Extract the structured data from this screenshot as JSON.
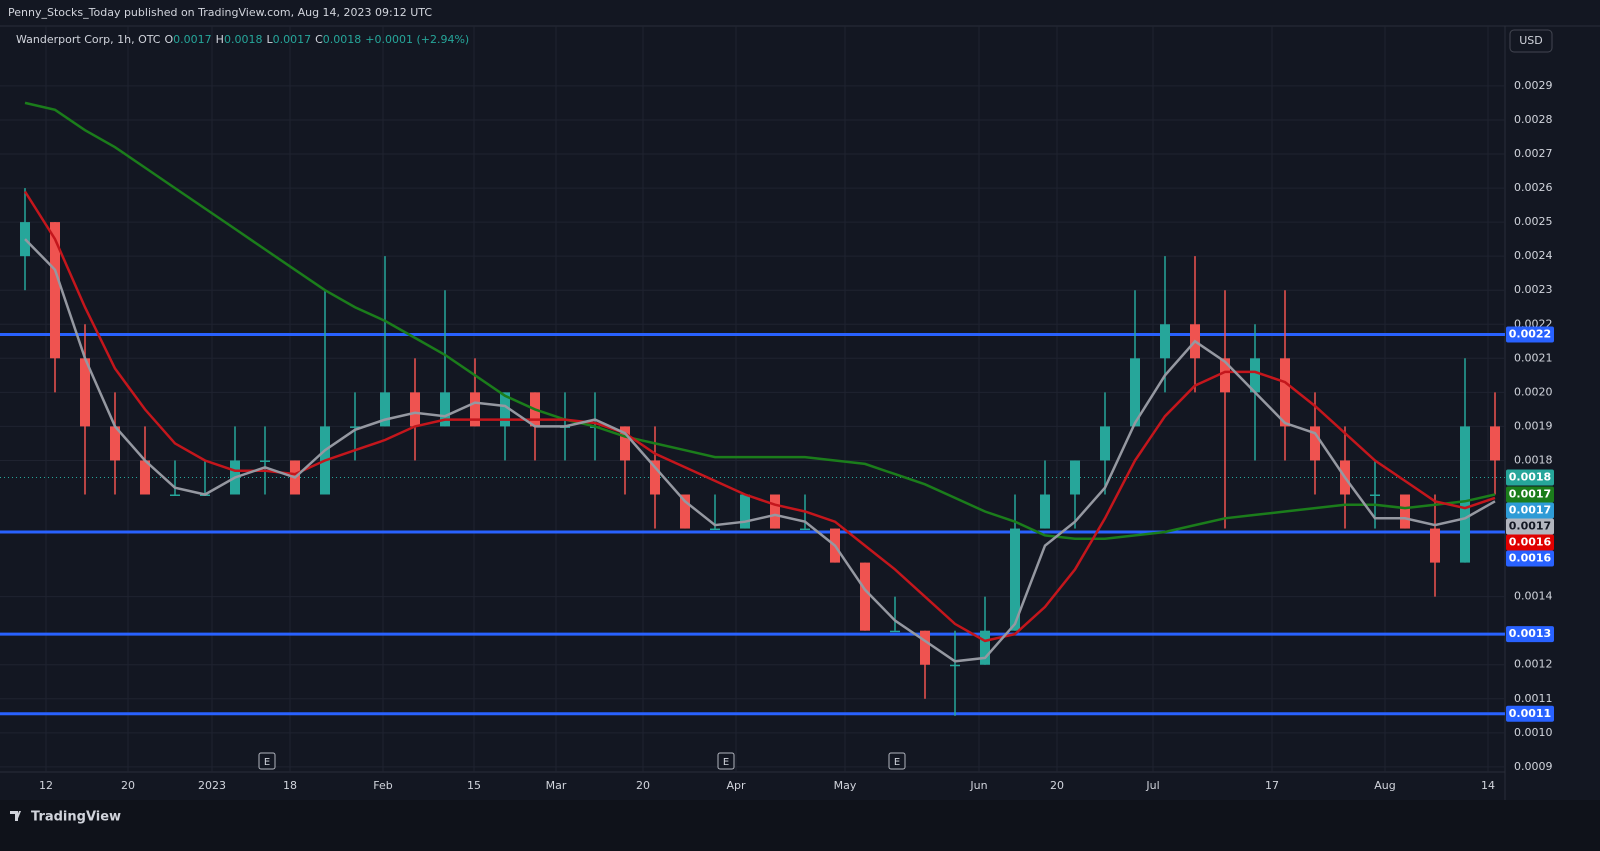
{
  "header": "Penny_Stocks_Today published on TradingView.com, Aug 14, 2023 09:12 UTC",
  "footer": "TradingView",
  "currency": "USD",
  "chart_data": {
    "type": "candlestick",
    "symbol": "Wanderport Corp, 1h, OTC",
    "ohlc_legend": [
      {
        "key": "O",
        "value": 0.0017
      },
      {
        "key": "H",
        "value": 0.0018
      },
      {
        "key": "L",
        "value": 0.0017
      },
      {
        "key": "C",
        "value": 0.0018
      }
    ],
    "change": "+0.0001 (+2.94%)",
    "up_color": "#26a69a",
    "down_color": "#ef5350",
    "xlim": [
      -1,
      149.5
    ],
    "ylim": [
      0.000885,
      0.003076
    ],
    "grid": true,
    "xticks": [
      {
        "value": 3.6,
        "label": "12"
      },
      {
        "value": 11.8,
        "label": "20"
      },
      {
        "value": 20.2,
        "label": "2023"
      },
      {
        "value": 28,
        "label": "18"
      },
      {
        "value": 37.3,
        "label": "Feb"
      },
      {
        "value": 46.4,
        "label": "15"
      },
      {
        "value": 54.6,
        "label": "Mar"
      },
      {
        "value": 63.3,
        "label": "20"
      },
      {
        "value": 72.6,
        "label": "Apr"
      },
      {
        "value": 83.5,
        "label": "May"
      },
      {
        "value": 96.9,
        "label": "Jun"
      },
      {
        "value": 104.7,
        "label": "20"
      },
      {
        "value": 114.3,
        "label": "Jul"
      },
      {
        "value": 126.2,
        "label": "17"
      },
      {
        "value": 137.5,
        "label": "Aug"
      },
      {
        "value": 147.8,
        "label": "14"
      }
    ],
    "yticks": [
      0.0009,
      {
        "value": 0.001,
        "label": "0.0010"
      },
      0.0011,
      0.0012,
      0.0014,
      0.0018,
      0.0019,
      {
        "value": 0.002,
        "label": "0.0020"
      },
      0.0021,
      0.0022,
      0.0023,
      0.0024,
      0.0025,
      0.0026,
      0.0027,
      0.0028,
      0.0029
    ],
    "earnings": [
      {
        "x": 25.7,
        "label": "E"
      },
      {
        "x": 71.6,
        "label": "E"
      },
      {
        "x": 88.7,
        "label": "E"
      }
    ],
    "x": [
      1.5,
      4.5,
      7.5,
      10.5,
      13.5,
      16.5,
      19.5,
      22.5,
      25.5,
      28.5,
      31.5,
      34.5,
      37.5,
      40.5,
      43.5,
      46.5,
      49.5,
      52.5,
      55.5,
      58.5,
      61.5,
      64.5,
      67.5,
      70.5,
      73.5,
      76.5,
      79.5,
      82.5,
      85.5,
      88.5,
      91.5,
      94.5,
      97.5,
      100.5,
      103.5,
      106.5,
      109.5,
      112.5,
      115.5,
      118.5,
      121.5,
      124.5,
      127.5,
      130.5,
      133.5,
      136.5,
      139.5,
      142.5,
      145.5,
      148.5
    ],
    "candles": [
      [
        0.0024,
        0.0026,
        0.0023,
        0.0025
      ],
      [
        0.0025,
        0.0025,
        0.002,
        0.0021
      ],
      [
        0.0021,
        0.0022,
        0.0017,
        0.0019
      ],
      [
        0.0019,
        0.002,
        0.0017,
        0.0018
      ],
      [
        0.0018,
        0.0019,
        0.0017,
        0.0017
      ],
      [
        0.0017,
        0.0018,
        0.0017,
        0.0017
      ],
      [
        0.0017,
        0.0018,
        0.0017,
        0.0017
      ],
      [
        0.0017,
        0.0019,
        0.0017,
        0.0018
      ],
      [
        0.0018,
        0.0019,
        0.0017,
        0.0018
      ],
      [
        0.0018,
        0.0018,
        0.0017,
        0.0017
      ],
      [
        0.0017,
        0.0023,
        0.0017,
        0.0019
      ],
      [
        0.0019,
        0.002,
        0.0018,
        0.0019
      ],
      [
        0.0019,
        0.0024,
        0.0019,
        0.002
      ],
      [
        0.002,
        0.0021,
        0.0018,
        0.0019
      ],
      [
        0.0019,
        0.0023,
        0.0019,
        0.002
      ],
      [
        0.002,
        0.0021,
        0.0019,
        0.0019
      ],
      [
        0.0019,
        0.002,
        0.0018,
        0.002
      ],
      [
        0.002,
        0.002,
        0.0018,
        0.0019
      ],
      [
        0.0019,
        0.002,
        0.0018,
        0.0019
      ],
      [
        0.0019,
        0.002,
        0.0018,
        0.0019
      ],
      [
        0.0019,
        0.0019,
        0.0017,
        0.0018
      ],
      [
        0.0018,
        0.0019,
        0.0016,
        0.0017
      ],
      [
        0.0017,
        0.0017,
        0.0016,
        0.0016
      ],
      [
        0.0016,
        0.0017,
        0.0016,
        0.0016
      ],
      [
        0.0016,
        0.0017,
        0.0016,
        0.0017
      ],
      [
        0.0017,
        0.0017,
        0.0016,
        0.0016
      ],
      [
        0.0016,
        0.0017,
        0.0016,
        0.0016
      ],
      [
        0.0016,
        0.0016,
        0.0015,
        0.0015
      ],
      [
        0.0015,
        0.0015,
        0.0013,
        0.0013
      ],
      [
        0.0013,
        0.0014,
        0.0013,
        0.0013
      ],
      [
        0.0013,
        0.0013,
        0.0011,
        0.0012
      ],
      [
        0.0012,
        0.0013,
        0.00105,
        0.0012
      ],
      [
        0.0012,
        0.0014,
        0.0012,
        0.0013
      ],
      [
        0.0013,
        0.0017,
        0.0013,
        0.0016
      ],
      [
        0.0016,
        0.0018,
        0.0016,
        0.0017
      ],
      [
        0.0017,
        0.0018,
        0.0016,
        0.0018
      ],
      [
        0.0018,
        0.002,
        0.0017,
        0.0019
      ],
      [
        0.0019,
        0.0023,
        0.0019,
        0.0021
      ],
      [
        0.0021,
        0.0024,
        0.002,
        0.0022
      ],
      [
        0.0022,
        0.0024,
        0.002,
        0.0021
      ],
      [
        0.0021,
        0.0023,
        0.0016,
        0.002
      ],
      [
        0.002,
        0.0022,
        0.0018,
        0.0021
      ],
      [
        0.0021,
        0.0023,
        0.0018,
        0.0019
      ],
      [
        0.0019,
        0.002,
        0.0017,
        0.0018
      ],
      [
        0.0018,
        0.0019,
        0.0016,
        0.0017
      ],
      [
        0.0017,
        0.0018,
        0.0016,
        0.0017
      ],
      [
        0.0017,
        0.0017,
        0.0016,
        0.0016
      ],
      [
        0.0016,
        0.0017,
        0.0014,
        0.0015
      ],
      [
        0.0015,
        0.0021,
        0.0015,
        0.0019
      ],
      [
        0.0019,
        0.002,
        0.0017,
        0.0018
      ]
    ],
    "series": [
      {
        "color": "#1b7d1b",
        "values": [
          0.00285,
          0.00283,
          0.00277,
          0.00272,
          0.00266,
          0.0026,
          0.00254,
          0.00248,
          0.00242,
          0.00236,
          0.0023,
          0.00225,
          0.00221,
          0.00216,
          0.00211,
          0.00205,
          0.00199,
          0.00195,
          0.00192,
          0.0019,
          0.00187,
          0.00185,
          0.00183,
          0.00181,
          0.00181,
          0.00181,
          0.00181,
          0.0018,
          0.00179,
          0.00176,
          0.00173,
          0.00169,
          0.00165,
          0.00162,
          0.00158,
          0.00157,
          0.00157,
          0.00158,
          0.00159,
          0.00161,
          0.00163,
          0.00164,
          0.00165,
          0.00166,
          0.00167,
          0.00167,
          0.00166,
          0.00167,
          0.00168,
          0.0017
        ]
      },
      {
        "color": "#c4161c",
        "values": [
          0.00259,
          0.00245,
          0.00225,
          0.00207,
          0.00195,
          0.00185,
          0.0018,
          0.00177,
          0.00177,
          0.00176,
          0.0018,
          0.00183,
          0.00186,
          0.0019,
          0.00192,
          0.00192,
          0.00192,
          0.00192,
          0.00192,
          0.00191,
          0.00188,
          0.00182,
          0.00178,
          0.00174,
          0.0017,
          0.00167,
          0.00165,
          0.00162,
          0.00155,
          0.00148,
          0.0014,
          0.00132,
          0.00127,
          0.00129,
          0.00137,
          0.00148,
          0.00163,
          0.0018,
          0.00193,
          0.00202,
          0.00206,
          0.00206,
          0.00203,
          0.00196,
          0.00188,
          0.0018,
          0.00174,
          0.00168,
          0.00166,
          0.00169
        ]
      },
      {
        "color": "#9598a1",
        "values": [
          0.00245,
          0.00236,
          0.0021,
          0.0019,
          0.0018,
          0.00172,
          0.0017,
          0.00175,
          0.00178,
          0.00175,
          0.00183,
          0.00189,
          0.00192,
          0.00194,
          0.00193,
          0.00197,
          0.00196,
          0.0019,
          0.0019,
          0.00192,
          0.00188,
          0.00178,
          0.00168,
          0.00161,
          0.00162,
          0.00164,
          0.00162,
          0.00155,
          0.00142,
          0.00133,
          0.00127,
          0.00121,
          0.00122,
          0.00132,
          0.00155,
          0.00162,
          0.00172,
          0.00191,
          0.00205,
          0.00215,
          0.00209,
          0.002,
          0.00191,
          0.00188,
          0.00175,
          0.00163,
          0.00163,
          0.00161,
          0.00163,
          0.00168
        ]
      }
    ],
    "hlines": {
      "color": "#2962ff",
      "values": [
        0.00217,
        0.00159,
        0.00129,
        0.001056
      ]
    },
    "last_price": {
      "value": 0.00175,
      "label": "0.0018",
      "color": "#26a69a"
    },
    "price_labels": [
      {
        "value": 0.00217,
        "label": "0.0022",
        "color": "#2962ff"
      },
      {
        "value": 0.0017,
        "label": "0.0017",
        "color": "#1b7d1b"
      },
      {
        "value": 0.00168,
        "label": "0.0017",
        "color": "#2e9bd6"
      },
      {
        "value": 0.00168,
        "label": "0.0017",
        "color": "#b2b5be"
      },
      {
        "value": 0.00164,
        "label": "0.0016",
        "color": "#e00000"
      },
      {
        "value": 0.00159,
        "label": "0.0016",
        "color": "#2962ff"
      },
      {
        "value": 0.00129,
        "label": "0.0013",
        "color": "#2962ff"
      },
      {
        "value": 0.001056,
        "label": "0.0011",
        "color": "#2962ff"
      }
    ]
  }
}
